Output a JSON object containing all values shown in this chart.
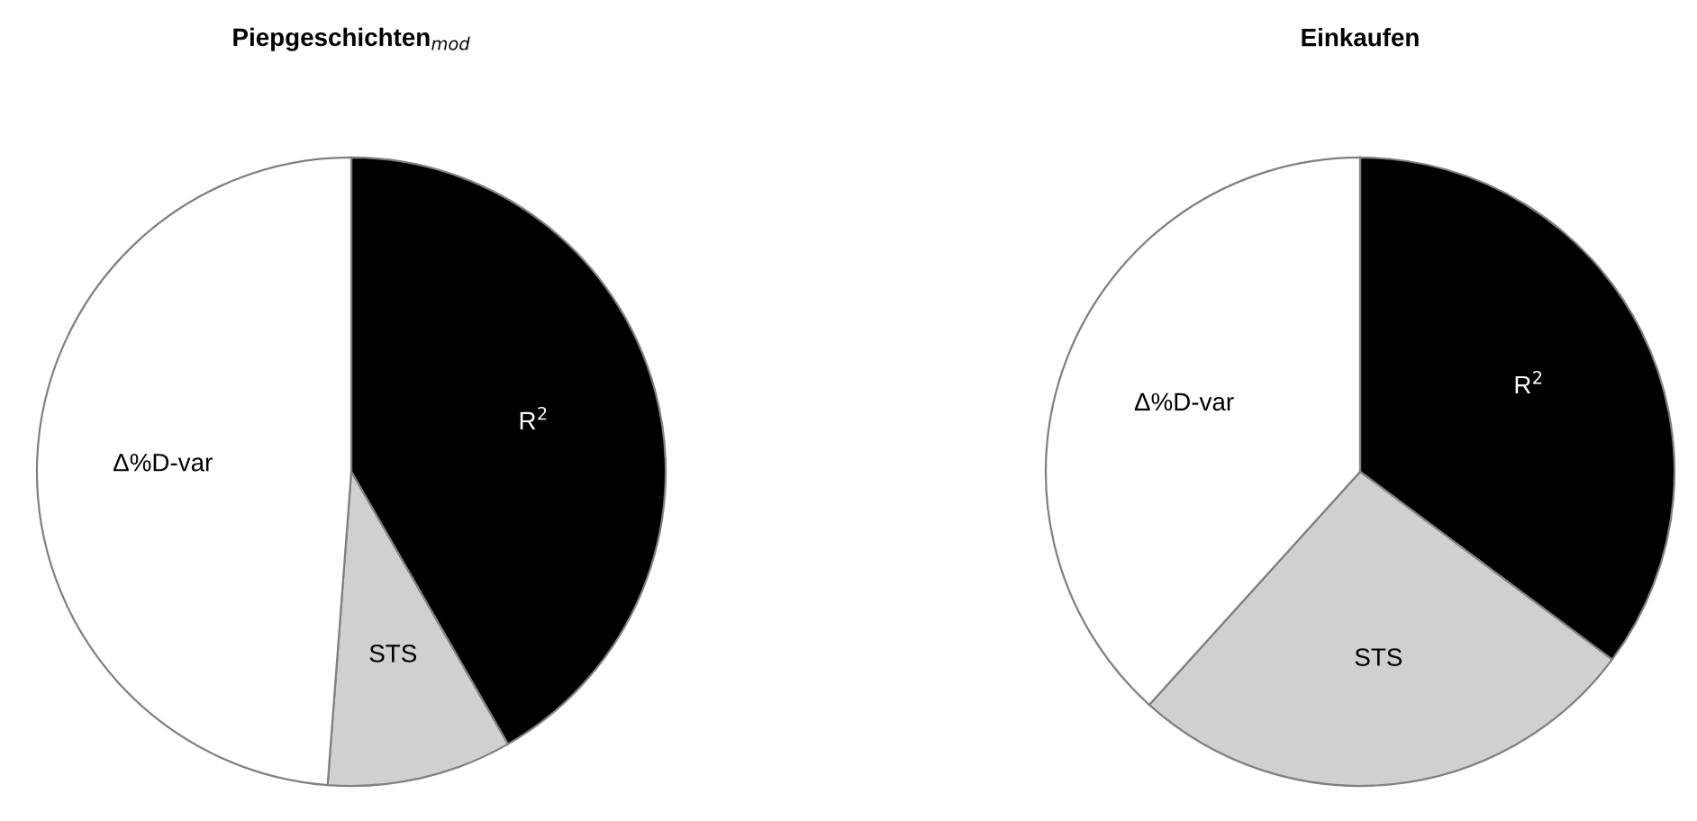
{
  "chart_data": [
    {
      "type": "pie",
      "title": "Piepgeschichten$_{mod}$",
      "categories": [
        "R$^{2}$",
        "STS",
        "Δ%D-var"
      ],
      "values": [
        41.7,
        9.5,
        48.8
      ],
      "colors": [
        "#000000",
        "#d0d0d0",
        "#ffffff"
      ],
      "legend": false
    },
    {
      "type": "pie",
      "title": "Einkaufen",
      "categories": [
        "R$^{2}$",
        "STS",
        "Δ%D-var"
      ],
      "values": [
        35.2,
        26.5,
        38.3
      ],
      "colors": [
        "#000000",
        "#d0d0d0",
        "#ffffff"
      ],
      "legend": false
    }
  ]
}
